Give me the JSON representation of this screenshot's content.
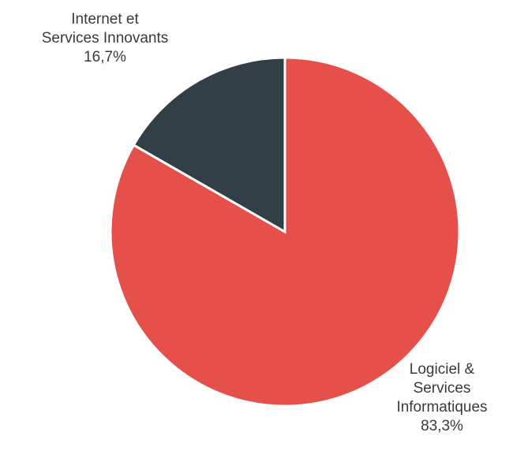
{
  "chart_data": {
    "type": "pie",
    "title": "",
    "start_angle_deg": 0,
    "direction": "clockwise",
    "slice_border_color": "#ffffff",
    "slices": [
      {
        "label": "Logiciel & Services Informatiques",
        "label_lines": [
          "Logiciel &",
          "Services",
          "Informatiques"
        ],
        "value": 83.3,
        "value_label": "83,3%",
        "color": "#e5504a"
      },
      {
        "label": "Internet et Services Innovants",
        "label_lines": [
          "Internet et",
          "Services Innovants"
        ],
        "value": 16.7,
        "value_label": "16,7%",
        "color": "#323f47"
      }
    ]
  }
}
